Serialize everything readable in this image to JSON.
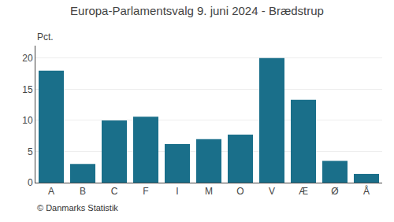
{
  "chart_data": {
    "type": "bar",
    "title": "Europa-Parlamentsvalg 9. juni 2024 - Brædstrup",
    "ylabel": "Pct.",
    "annotations": [
      "© Danmarks Statistik"
    ],
    "categories": [
      "A",
      "B",
      "C",
      "F",
      "I",
      "M",
      "O",
      "V",
      "Æ",
      "Ø",
      "Å"
    ],
    "values": [
      18.0,
      3.0,
      10.0,
      10.6,
      6.2,
      7.0,
      7.7,
      20.0,
      13.3,
      3.5,
      1.4
    ],
    "color": "#1a6f8a",
    "ylim": [
      0,
      22
    ],
    "yticks": [
      0,
      5,
      10,
      15,
      20
    ],
    "grid": true
  }
}
